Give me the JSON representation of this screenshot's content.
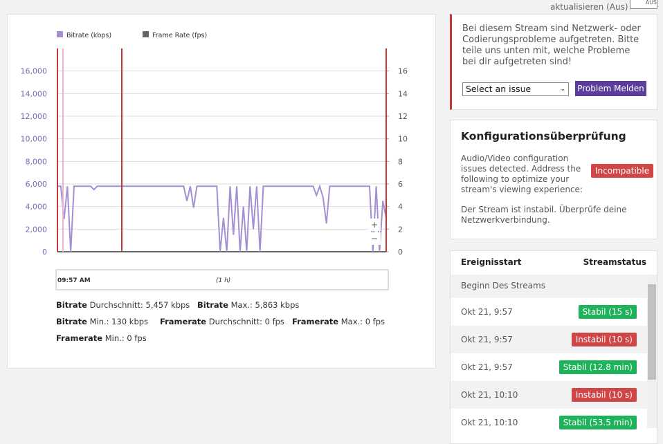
{
  "header": {
    "refresh_label": "aktualisieren (Aus)",
    "toggle_label": "AUS"
  },
  "chart_data": {
    "type": "line",
    "series": [
      {
        "name": "Bitrate (kbps)",
        "color": "#a38fd1",
        "values": [
          5800,
          5800,
          2900,
          5800,
          0,
          5800,
          5800,
          5800,
          5800,
          5800,
          5800,
          5500,
          5800,
          5800,
          5800,
          5800,
          5800,
          5800,
          5800,
          5800,
          5800,
          5800,
          5800,
          5800,
          5800,
          5800,
          5800,
          5800,
          5800,
          5800,
          5800,
          5800,
          5800,
          5800,
          5800,
          5800,
          5800,
          5800,
          5800,
          4500,
          5800,
          3900,
          5800,
          5800,
          5800,
          5800,
          5800,
          5800,
          5800,
          0,
          3000,
          0,
          5800,
          1500,
          5800,
          0,
          4000,
          0,
          5800,
          2000,
          5800,
          0,
          5800,
          5800,
          5800,
          5800,
          5800,
          5800,
          5800,
          5800,
          5800,
          5800,
          5800,
          5800,
          5800,
          5800,
          5800,
          5800,
          5000,
          5800,
          4800,
          2500,
          5800,
          5800,
          5800,
          5800,
          5800,
          5800,
          5800,
          5800,
          5800,
          5800,
          5800,
          5800,
          5800,
          0,
          5800,
          0,
          4500,
          3000
        ]
      },
      {
        "name": "Frame Rate (fps)",
        "color": "#666666",
        "axis": "y2",
        "values": [
          0,
          0,
          0,
          0,
          0,
          0,
          0,
          0,
          0,
          0,
          0,
          0,
          0,
          0,
          0,
          0,
          0,
          0,
          0,
          0,
          0,
          0,
          0,
          0,
          0,
          0,
          0,
          0,
          0,
          0,
          0,
          0,
          0,
          0,
          0,
          0,
          0,
          0,
          0,
          0,
          0,
          0,
          0,
          0,
          0,
          0,
          0,
          0,
          0,
          0,
          0,
          0,
          0,
          0,
          0,
          0,
          0,
          0,
          0,
          0,
          0,
          0,
          0,
          0,
          0,
          0,
          0,
          0,
          0,
          0,
          0,
          0,
          0,
          0,
          0,
          0,
          0,
          0,
          0,
          0,
          0,
          0,
          0,
          0,
          0,
          0,
          0,
          0,
          0,
          0,
          0,
          0,
          0,
          0,
          0,
          0,
          0,
          0,
          0,
          0
        ]
      }
    ],
    "ylim": [
      0,
      18000
    ],
    "yticks": [
      0,
      {
        "value": 2000,
        "label": "2,000"
      },
      {
        "value": 4000,
        "label": "4,000"
      },
      {
        "value": 6000,
        "label": "6,000"
      },
      {
        "value": 8000,
        "label": "8,000"
      },
      {
        "value": 10000,
        "label": "10,000"
      },
      {
        "value": 12000,
        "label": "12,000"
      },
      {
        "value": 14000,
        "label": "14,000"
      },
      {
        "value": 16000,
        "label": "16,000"
      }
    ],
    "y2lim": [
      0,
      18
    ],
    "y2ticks": [
      0,
      2,
      4,
      6,
      8,
      10,
      12,
      14,
      16
    ],
    "grid": true,
    "time_axis": {
      "start": "09:57 AM",
      "span": "(1 h)"
    },
    "zoom": {
      "in": "+",
      "out": "−"
    }
  },
  "stats": [
    {
      "label": "Bitrate",
      "text": "Durchschnitt: 5,457 kbps"
    },
    {
      "label": "Bitrate",
      "text": "Max.: 5,863 kbps"
    },
    {
      "label": "Bitrate",
      "text": "Min.: 130 kbps"
    },
    {
      "label": "Framerate",
      "text": "Durchschnitt: 0 fps"
    },
    {
      "label": "Framerate",
      "text": "Max.: 0 fps"
    },
    {
      "label": "Framerate",
      "text": "Min.: 0 fps"
    }
  ],
  "alert": {
    "text": "Bei diesem Stream sind Netzwerk- oder Codierungsprobleme aufgetreten. Bitte teile uns unten mit, welche Probleme bei dir aufgetreten sind!",
    "select": "Select an issue",
    "button": "Problem Melden"
  },
  "config": {
    "title": "Konfigurationsüberprüfung",
    "text": "Audio/Video configuration issues detected. Address the following to optimize your stream's viewing experience:",
    "badge": "Incompatible",
    "note": "Der Stream ist instabil. Überprüfe deine Netzwerkverbindung."
  },
  "events": {
    "headers": [
      "Ereignisstart",
      "Streamstatus"
    ],
    "rows": [
      {
        "time": "Beginn Des Streams"
      },
      {
        "time": "Okt 21, 9:57",
        "status": "Stabil (15 s)",
        "color": "#1eb25a"
      },
      {
        "time": "Okt 21, 9:57",
        "status": "Instabil (10 s)",
        "color": "#d04545"
      },
      {
        "time": "Okt 21, 9:57",
        "status": "Stabil (12.8 min)",
        "color": "#1eb25a"
      },
      {
        "time": "Okt 21, 10:10",
        "status": "Instabil (10 s)",
        "color": "#d04545"
      },
      {
        "time": "Okt 21, 10:10",
        "status": "Stabil (53.5 min)",
        "color": "#1eb25a"
      }
    ]
  }
}
